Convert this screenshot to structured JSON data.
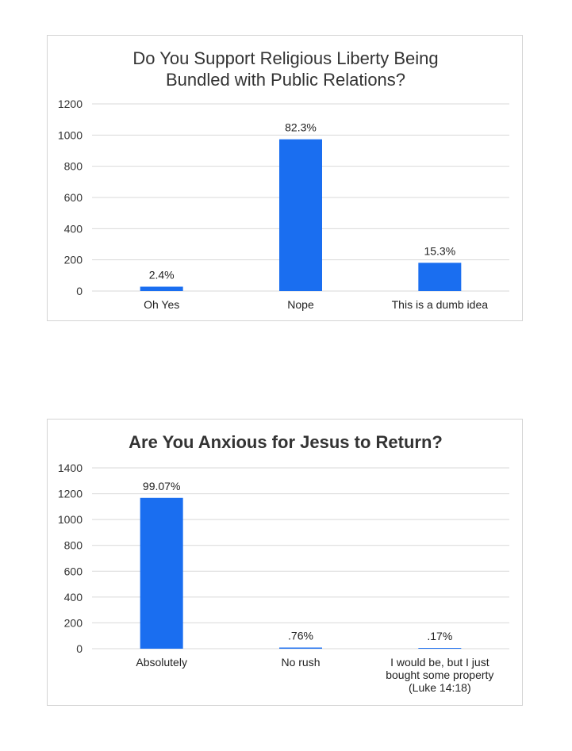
{
  "chart_data": [
    {
      "type": "bar",
      "title_lines": [
        "Do You Support Religious Liberty Being",
        "Bundled with Public Relations?"
      ],
      "categories": [
        [
          "Oh Yes"
        ],
        [
          "Nope"
        ],
        [
          "This is a dumb idea"
        ]
      ],
      "values": [
        28,
        973,
        181
      ],
      "data_labels": [
        "2.4%",
        "82.3%",
        "15.3%"
      ],
      "ylim": [
        0,
        1200
      ],
      "yticks": [
        0,
        200,
        400,
        600,
        800,
        1000,
        1200
      ],
      "bar_color": "#1a6ef0",
      "grid": true,
      "legend": "none"
    },
    {
      "type": "bar",
      "title_lines": [
        "Are You Anxious for Jesus to Return?"
      ],
      "categories": [
        [
          "Absolutely"
        ],
        [
          "No rush"
        ],
        [
          "I would be, but I just",
          "bought some property",
          "(Luke 14:18)"
        ]
      ],
      "values": [
        1168,
        9,
        2
      ],
      "data_labels": [
        "99.07%",
        ".76%",
        ".17%"
      ],
      "ylim": [
        0,
        1400
      ],
      "yticks": [
        0,
        200,
        400,
        600,
        800,
        1000,
        1200,
        1400
      ],
      "bar_color": "#1a6ef0",
      "grid": true,
      "legend": "none"
    }
  ]
}
